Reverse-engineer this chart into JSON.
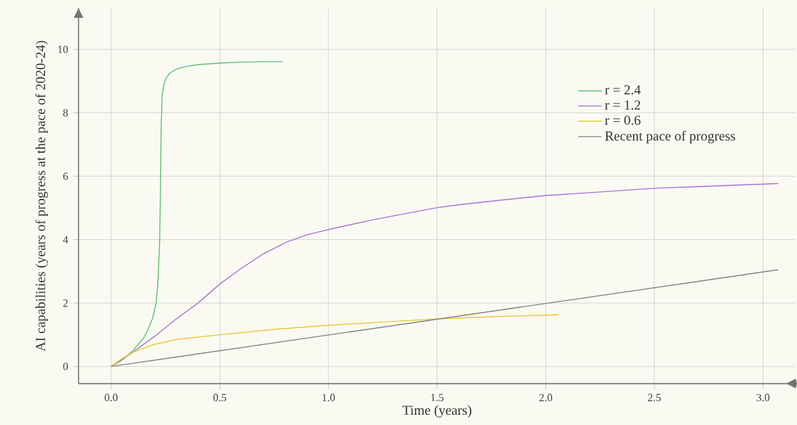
{
  "chart_data": {
    "type": "line",
    "xlabel": "Time (years)",
    "ylabel": "AI capabilities (years of progress at the pace of 2020-24)",
    "xlim": [
      -0.15,
      3.15
    ],
    "ylim": [
      -0.54,
      11.3
    ],
    "xticks": [
      {
        "value": 0,
        "label": "0.0"
      },
      {
        "value": 0.5,
        "label": "0.5"
      },
      {
        "value": 1,
        "label": "1.0"
      },
      {
        "value": 1.5,
        "label": "1.5"
      },
      {
        "value": 2,
        "label": "2.0"
      },
      {
        "value": 2.5,
        "label": "2.5"
      },
      {
        "value": 3,
        "label": "3.0"
      }
    ],
    "yticks": [
      0,
      2,
      4,
      6,
      8,
      10
    ],
    "grid": true,
    "legend": "top right",
    "marker": "none",
    "line_style": "solid",
    "series": [
      {
        "name": "r = 2.4",
        "color": "#5cbf6e",
        "x": [
          0,
          0.05,
          0.1,
          0.15,
          0.17,
          0.19,
          0.207,
          0.215,
          0.223,
          0.227,
          0.23,
          0.235,
          0.245,
          0.254,
          0.27,
          0.3,
          0.35,
          0.4,
          0.5,
          0.6,
          0.7,
          0.79
        ],
        "values": [
          0,
          0.2,
          0.5,
          0.9,
          1.17,
          1.5,
          2.0,
          2.6,
          3.9,
          5.5,
          7.5,
          8.6,
          8.95,
          9.11,
          9.25,
          9.38,
          9.47,
          9.52,
          9.57,
          9.6,
          9.61,
          9.61
        ]
      },
      {
        "name": "r = 1.2",
        "color": "#a56fd8",
        "x": [
          0,
          0.1,
          0.2,
          0.3,
          0.4,
          0.5,
          0.6,
          0.7,
          0.81,
          0.9,
          1.0,
          1.2,
          1.4,
          1.5,
          1.6,
          1.8,
          2.0,
          2.2,
          2.5,
          2.8,
          3.07
        ],
        "values": [
          0,
          0.45,
          0.95,
          1.5,
          2.0,
          2.6,
          3.1,
          3.55,
          3.93,
          4.15,
          4.32,
          4.62,
          4.88,
          5.01,
          5.1,
          5.25,
          5.39,
          5.48,
          5.62,
          5.7,
          5.77
        ]
      },
      {
        "name": "r = 0.6",
        "color": "#e8c830",
        "x": [
          0,
          0.05,
          0.1,
          0.2,
          0.3,
          0.5,
          0.75,
          1.0,
          1.25,
          1.5,
          1.75,
          2.06
        ],
        "values": [
          0,
          0.25,
          0.45,
          0.7,
          0.85,
          1.0,
          1.17,
          1.3,
          1.4,
          1.5,
          1.57,
          1.63
        ]
      },
      {
        "name": "Recent pace of progress",
        "color": "#808080",
        "x": [
          0,
          3.07
        ],
        "values": [
          0,
          3.05
        ]
      }
    ]
  }
}
